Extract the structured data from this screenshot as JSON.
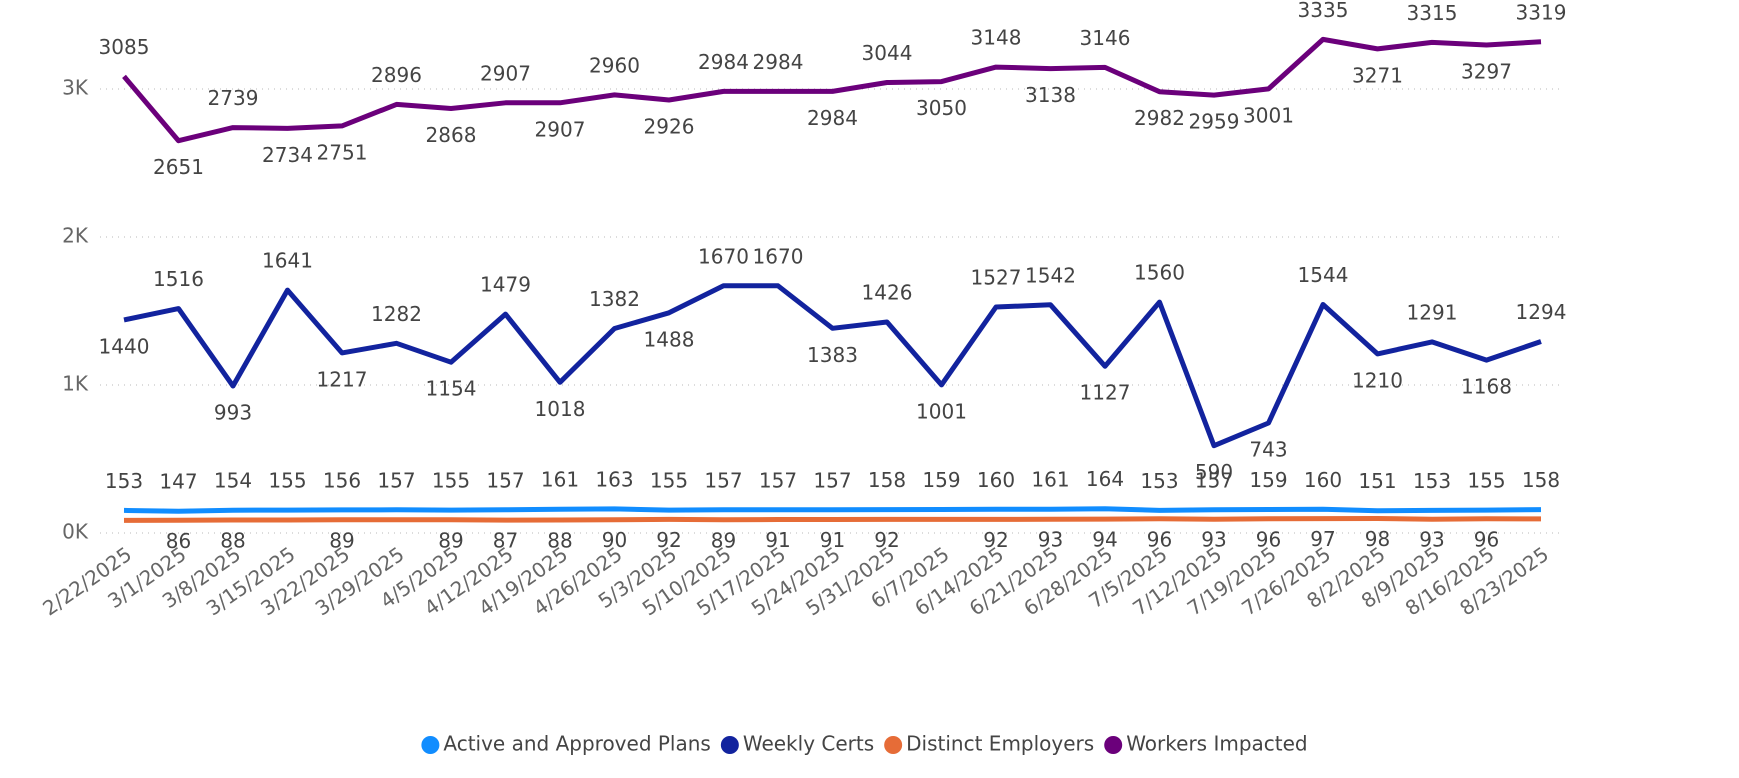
{
  "chart_data": {
    "type": "line",
    "x": [
      "2/22/2025",
      "3/1/2025",
      "3/8/2025",
      "3/15/2025",
      "3/22/2025",
      "3/29/2025",
      "4/5/2025",
      "4/12/2025",
      "4/19/2025",
      "4/26/2025",
      "5/3/2025",
      "5/10/2025",
      "5/17/2025",
      "5/24/2025",
      "5/31/2025",
      "6/7/2025",
      "6/14/2025",
      "6/21/2025",
      "6/28/2025",
      "7/5/2025",
      "7/12/2025",
      "7/19/2025",
      "7/26/2025",
      "8/2/2025",
      "8/9/2025",
      "8/16/2025",
      "8/23/2025"
    ],
    "series": [
      {
        "name": "Active and Approved Plans",
        "color": "#118dff",
        "label_side": "above",
        "values": [
          153,
          147,
          154,
          155,
          156,
          157,
          155,
          157,
          161,
          163,
          155,
          157,
          157,
          157,
          158,
          159,
          160,
          161,
          164,
          153,
          157,
          159,
          160,
          151,
          153,
          155,
          158
        ]
      },
      {
        "name": "Weekly Certs",
        "color": "#12239e",
        "label_side": "auto",
        "values": [
          1440,
          1516,
          993,
          1641,
          1217,
          1282,
          1154,
          1479,
          1018,
          1382,
          1488,
          1670,
          1670,
          1383,
          1426,
          1001,
          1527,
          1542,
          1127,
          1560,
          590,
          743,
          1544,
          1210,
          1291,
          1168,
          1294
        ]
      },
      {
        "name": "Distinct Employers",
        "color": "#e66c37",
        "label_side": "below",
        "values": [
          85,
          86,
          88,
          88,
          89,
          89,
          89,
          87,
          88,
          90,
          92,
          89,
          91,
          91,
          92,
          92,
          92,
          93,
          94,
          96,
          93,
          96,
          97,
          98,
          93,
          96,
          95
        ],
        "value_labels": [
          null,
          86,
          88,
          null,
          89,
          null,
          89,
          87,
          88,
          90,
          92,
          89,
          91,
          91,
          92,
          null,
          92,
          93,
          94,
          96,
          93,
          96,
          97,
          98,
          93,
          96,
          null
        ]
      },
      {
        "name": "Workers Impacted",
        "color": "#6b007b",
        "label_side": "auto",
        "values": [
          3085,
          2651,
          2739,
          2734,
          2751,
          2896,
          2868,
          2907,
          2907,
          2960,
          2926,
          2984,
          2984,
          2984,
          3044,
          3050,
          3148,
          3138,
          3146,
          2982,
          2959,
          3001,
          3335,
          3271,
          3315,
          3297,
          3319
        ]
      }
    ],
    "ylim": [
      0,
      3500
    ],
    "yticks": [
      {
        "value": 0,
        "label": "0K"
      },
      {
        "value": 1000,
        "label": "1K"
      },
      {
        "value": 2000,
        "label": "2K"
      },
      {
        "value": 3000,
        "label": "3K"
      }
    ],
    "grid": true,
    "legend": "bottom"
  }
}
